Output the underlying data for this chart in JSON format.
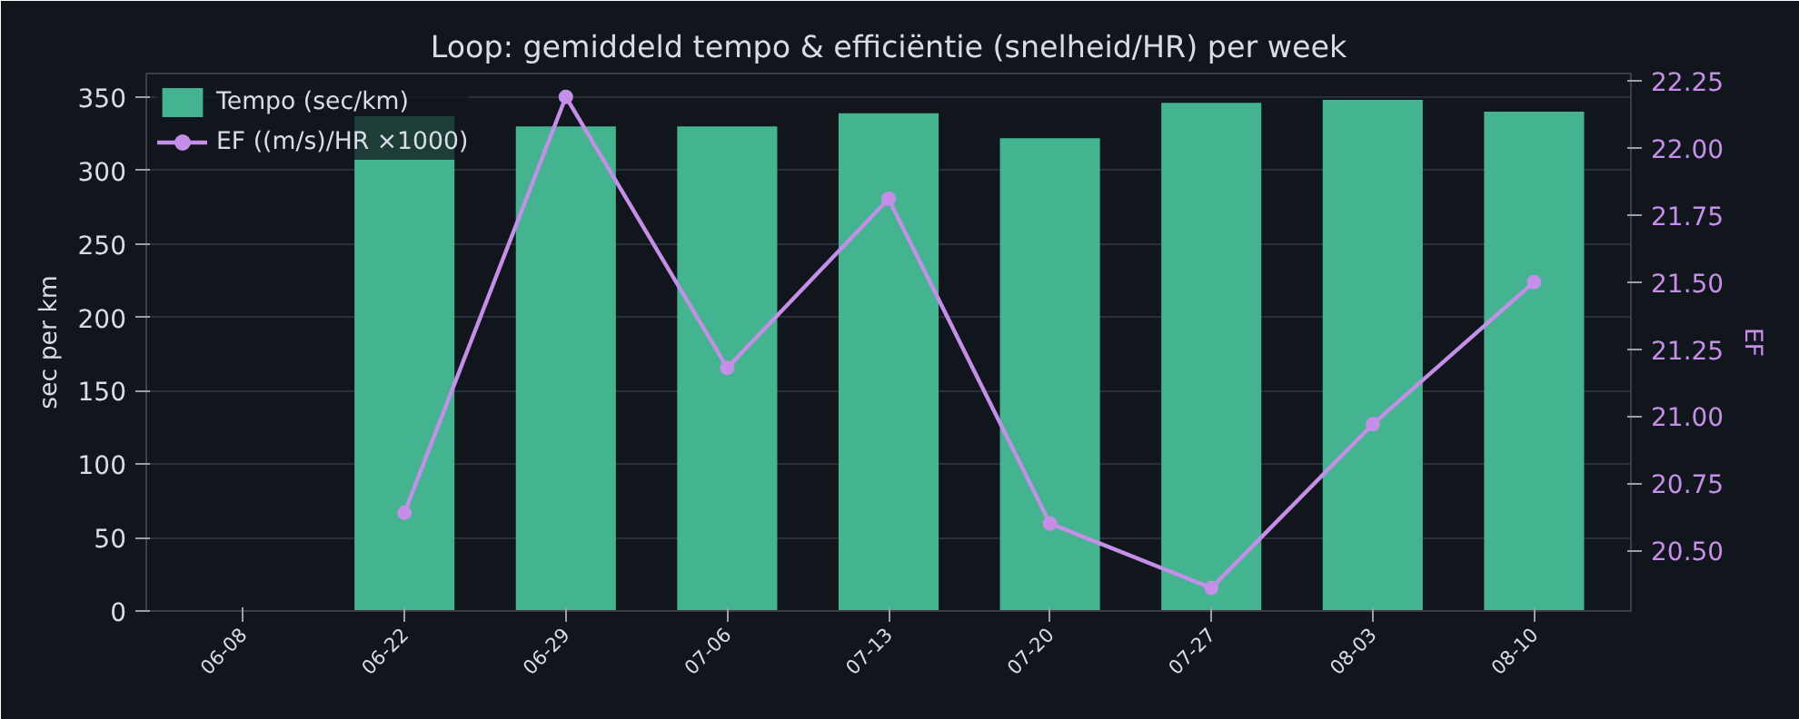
{
  "chart_data": {
    "type": "bar",
    "title": "Loop: gemiddeld tempo & efficiëntie (snelheid/HR) per week",
    "ylabel": "sec per km",
    "y2label": "EF",
    "categories": [
      "06-08",
      "06-22",
      "06-29",
      "07-06",
      "07-13",
      "07-20",
      "07-27",
      "08-03",
      "08-10"
    ],
    "series": [
      {
        "name": "Tempo (sec/km)",
        "color": "#43b48f",
        "values": [
          null,
          337,
          330,
          330,
          339,
          322,
          346,
          348,
          340
        ]
      },
      {
        "name": "EF ((m/s)/HR ×1000)",
        "type": "line",
        "axis": "y2",
        "color": "#c58ee8",
        "marker": "circle",
        "values": [
          null,
          20.64,
          22.19,
          21.18,
          21.81,
          20.6,
          20.36,
          20.97,
          21.5
        ]
      }
    ],
    "ylim": [
      0,
      366
    ],
    "yticks": [
      0,
      50,
      100,
      150,
      200,
      250,
      300,
      350
    ],
    "y2lim": [
      20.274,
      22.277
    ],
    "y2ticks": [
      {
        "value": 20.5,
        "label": "20.50"
      },
      {
        "value": 20.75,
        "label": "20.75"
      },
      {
        "value": 21.0,
        "label": "21.00"
      },
      {
        "value": 21.25,
        "label": "21.25"
      },
      {
        "value": 21.5,
        "label": "21.50"
      },
      {
        "value": 21.75,
        "label": "21.75"
      },
      {
        "value": 22.0,
        "label": "22.00"
      },
      {
        "value": 22.25,
        "label": "22.25"
      }
    ],
    "grid": "y",
    "legend": "top left"
  }
}
